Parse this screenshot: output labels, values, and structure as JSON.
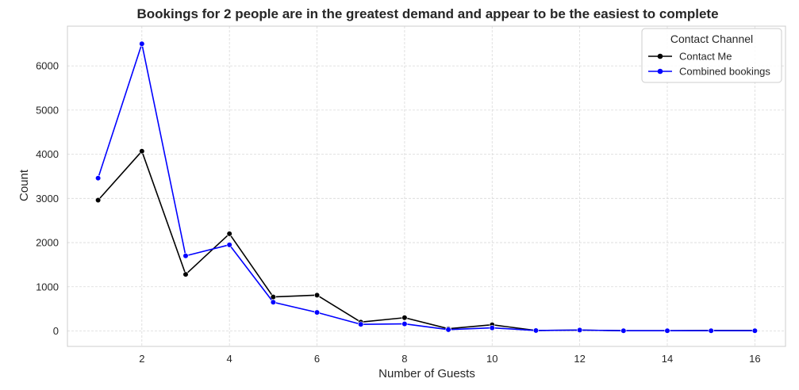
{
  "chart_data": {
    "type": "line",
    "title": "Bookings for 2 people are in the greatest demand and appear to be the easiest to complete",
    "xlabel": "Number of Guests",
    "ylabel": "Count",
    "x": [
      1,
      2,
      3,
      4,
      5,
      6,
      7,
      8,
      9,
      10,
      11,
      12,
      13,
      14,
      15,
      16
    ],
    "xlim": [
      0.3,
      16.7
    ],
    "ylim": [
      -350,
      6900
    ],
    "xticks": [
      2,
      4,
      6,
      8,
      10,
      12,
      14,
      16
    ],
    "yticks": [
      0,
      1000,
      2000,
      3000,
      4000,
      5000,
      6000
    ],
    "grid": true,
    "legend": {
      "title": "Contact Channel",
      "placement": "top-right"
    },
    "series": [
      {
        "name": "Contact Me",
        "color": "#000000",
        "values": [
          2960,
          4070,
          1280,
          2200,
          770,
          810,
          200,
          300,
          50,
          140,
          10,
          20,
          5,
          5,
          10,
          10
        ]
      },
      {
        "name": "Combined bookings",
        "color": "#0000ff",
        "values": [
          3460,
          6500,
          1700,
          1950,
          650,
          420,
          150,
          160,
          30,
          70,
          10,
          20,
          5,
          5,
          5,
          5
        ]
      }
    ]
  }
}
